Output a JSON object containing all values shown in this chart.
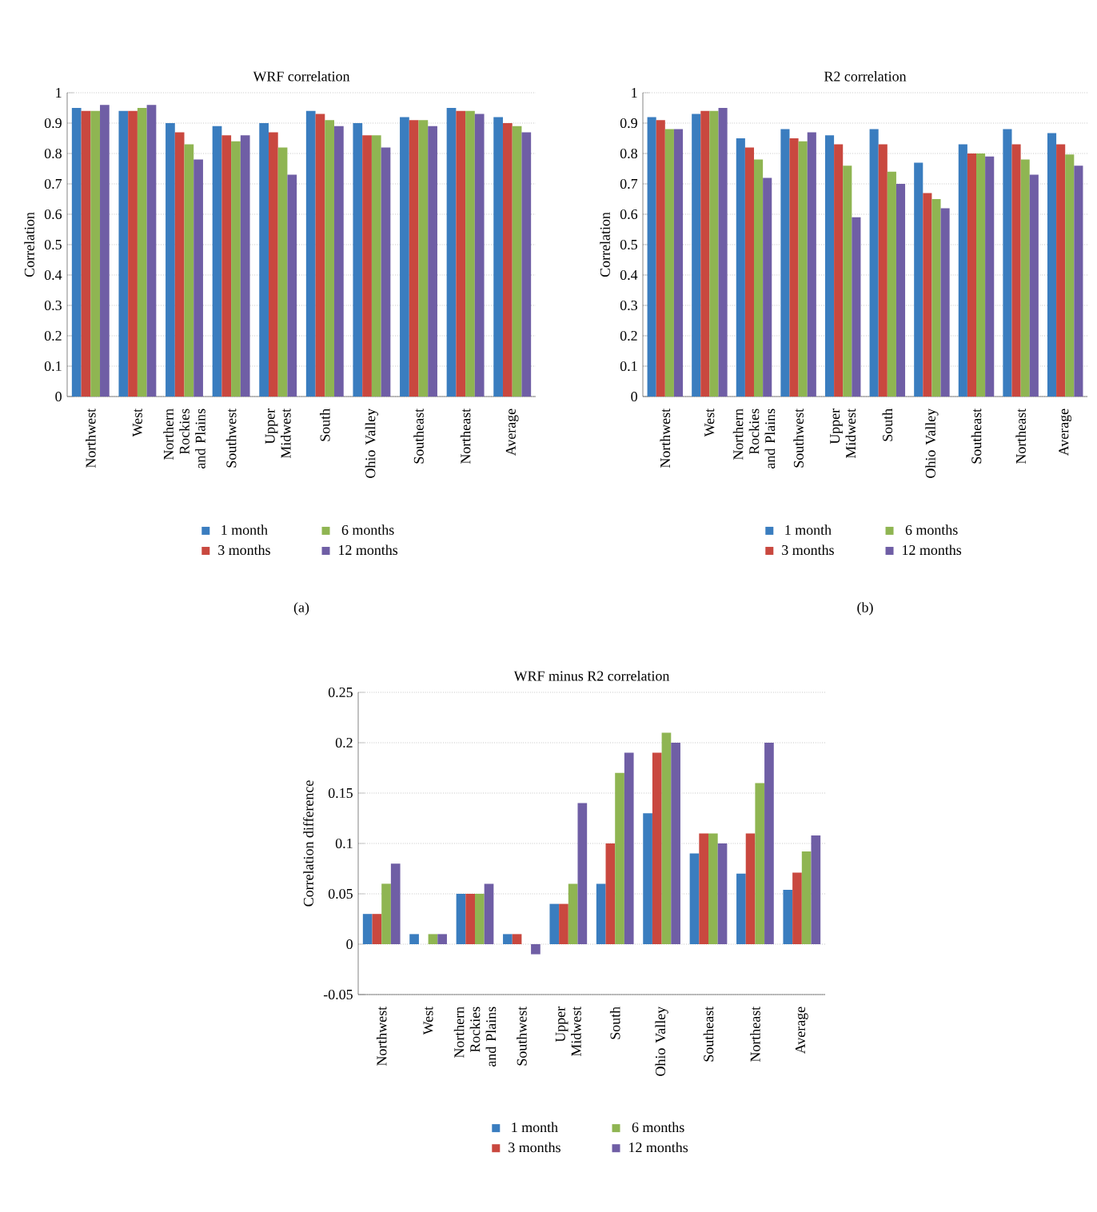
{
  "chart_data": [
    {
      "type": "bar",
      "title": "WRF correlation",
      "ylabel": "Correlation",
      "categories": [
        "Northwest",
        "West",
        "Northern Rockies and Plains",
        "Southwest",
        "Upper Midwest",
        "South",
        "Ohio Valley",
        "Southeast",
        "Northeast",
        "Average"
      ],
      "series": [
        {
          "name": "1 month",
          "color": "#3a7dbf",
          "values": [
            0.95,
            0.94,
            0.9,
            0.89,
            0.9,
            0.94,
            0.9,
            0.92,
            0.95,
            0.92
          ]
        },
        {
          "name": "3 months",
          "color": "#c9483f",
          "values": [
            0.94,
            0.94,
            0.87,
            0.86,
            0.87,
            0.93,
            0.86,
            0.91,
            0.94,
            0.9
          ]
        },
        {
          "name": "6 months",
          "color": "#8fb552",
          "values": [
            0.94,
            0.95,
            0.83,
            0.84,
            0.82,
            0.91,
            0.86,
            0.91,
            0.94,
            0.89
          ]
        },
        {
          "name": "12 months",
          "color": "#6f5ea5",
          "values": [
            0.96,
            0.96,
            0.78,
            0.86,
            0.73,
            0.89,
            0.82,
            0.89,
            0.93,
            0.87
          ]
        }
      ],
      "ylim": [
        0,
        1
      ],
      "yticks": [
        0,
        0.1,
        0.2,
        0.3,
        0.4,
        0.5,
        0.6,
        0.7,
        0.8,
        0.9,
        1
      ],
      "grid": "y",
      "legend": "bottom",
      "annotations": [
        "(a)"
      ]
    },
    {
      "type": "bar",
      "title": "R2 correlation",
      "ylabel": "Correlation",
      "categories": [
        "Northwest",
        "West",
        "Northern Rockies and Plains",
        "Southwest",
        "Upper Midwest",
        "South",
        "Ohio Valley",
        "Southeast",
        "Northeast",
        "Average"
      ],
      "series": [
        {
          "name": "1 month",
          "color": "#3a7dbf",
          "values": [
            0.92,
            0.93,
            0.85,
            0.88,
            0.86,
            0.88,
            0.77,
            0.83,
            0.88,
            0.867
          ]
        },
        {
          "name": "3 months",
          "color": "#c9483f",
          "values": [
            0.91,
            0.94,
            0.82,
            0.85,
            0.83,
            0.83,
            0.67,
            0.8,
            0.83,
            0.83
          ]
        },
        {
          "name": "6 months",
          "color": "#8fb552",
          "values": [
            0.88,
            0.94,
            0.78,
            0.84,
            0.76,
            0.74,
            0.65,
            0.8,
            0.78,
            0.797
          ]
        },
        {
          "name": "12 months",
          "color": "#6f5ea5",
          "values": [
            0.88,
            0.95,
            0.72,
            0.87,
            0.59,
            0.7,
            0.62,
            0.79,
            0.73,
            0.76
          ]
        }
      ],
      "ylim": [
        0,
        1
      ],
      "yticks": [
        0,
        0.1,
        0.2,
        0.3,
        0.4,
        0.5,
        0.6,
        0.7,
        0.8,
        0.9,
        1
      ],
      "grid": "y",
      "legend": "bottom",
      "annotations": [
        "(b)"
      ]
    },
    {
      "type": "bar",
      "title": "WRF minus R2 correlation",
      "ylabel": "Correlation difference",
      "categories": [
        "Northwest",
        "West",
        "Northern Rockies and Plains",
        "Southwest",
        "Upper Midwest",
        "South",
        "Ohio Valley",
        "Southeast",
        "Northeast",
        "Average"
      ],
      "series": [
        {
          "name": "1 month",
          "color": "#3a7dbf",
          "values": [
            0.03,
            0.01,
            0.05,
            0.01,
            0.04,
            0.06,
            0.13,
            0.09,
            0.07,
            0.054
          ]
        },
        {
          "name": "3 months",
          "color": "#c9483f",
          "values": [
            0.03,
            0,
            0.05,
            0.01,
            0.04,
            0.1,
            0.19,
            0.11,
            0.11,
            0.071
          ]
        },
        {
          "name": "6 months",
          "color": "#8fb552",
          "values": [
            0.06,
            0.01,
            0.05,
            0,
            0.06,
            0.17,
            0.21,
            0.11,
            0.16,
            0.092
          ]
        },
        {
          "name": "12 months",
          "color": "#6f5ea5",
          "values": [
            0.08,
            0.01,
            0.06,
            -0.01,
            0.14,
            0.19,
            0.2,
            0.1,
            0.2,
            0.108
          ]
        }
      ],
      "ylim": [
        -0.05,
        0.25
      ],
      "yticks": [
        -0.05,
        0,
        0.05,
        0.1,
        0.15,
        0.2,
        0.25
      ],
      "grid": "y",
      "legend": "bottom"
    }
  ]
}
